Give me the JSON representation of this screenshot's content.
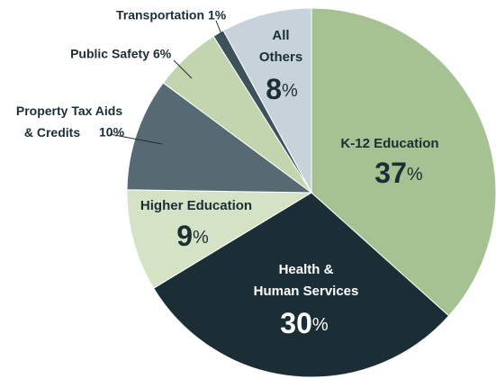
{
  "chart_data": {
    "type": "pie",
    "categories": [
      "K-12 Education",
      "Health & Human Services",
      "Higher Education",
      "Property Tax Aids & Credits",
      "Public Safety",
      "Transportation",
      "All Others"
    ],
    "values": [
      37,
      30,
      9,
      10,
      6,
      1,
      8
    ],
    "value_labels": [
      "37%",
      "30%",
      "9%",
      "10%",
      "6%",
      "1%",
      "8%"
    ],
    "colors": [
      "#a6c292",
      "#1b2e35",
      "#d4e3c5",
      "#556a73",
      "#c2d5ae",
      "#3d525b",
      "#c8d2da"
    ]
  }
}
